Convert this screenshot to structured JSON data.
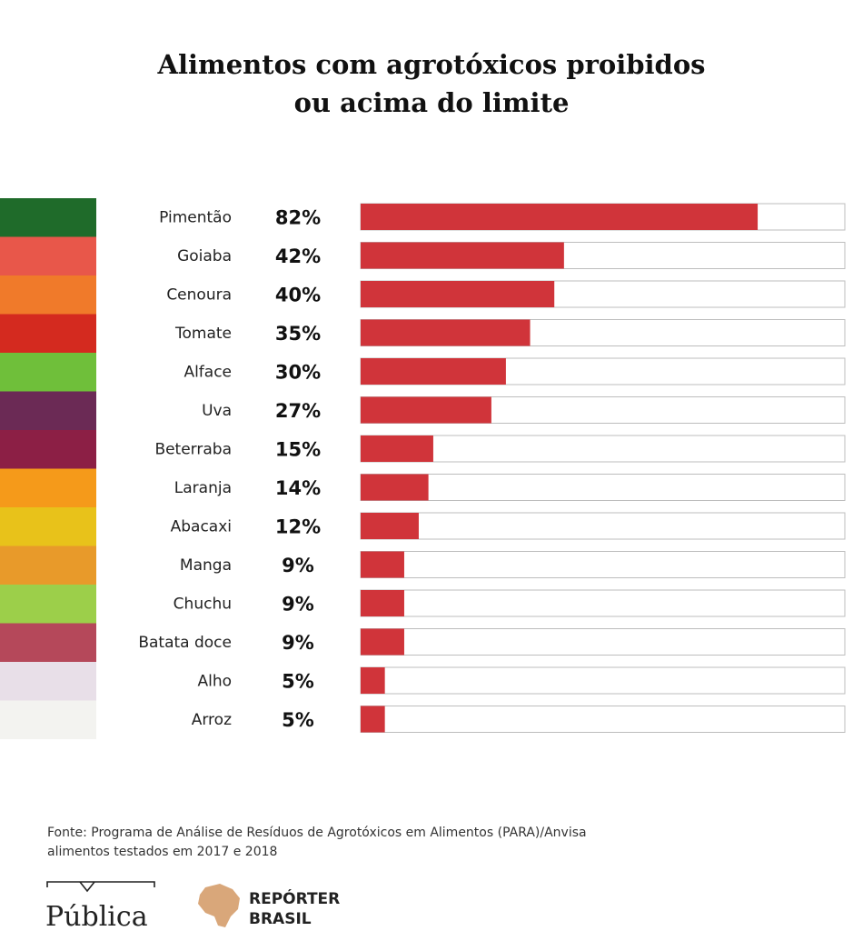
{
  "title_lines": [
    "Alimentos com agrotóxicos proibidos",
    "ou acima do limite"
  ],
  "chart_data": {
    "type": "bar",
    "orientation": "horizontal",
    "title": "Alimentos com agrotóxicos proibidos ou acima do limite",
    "categories": [
      "Pimentão",
      "Goiaba",
      "Cenoura",
      "Tomate",
      "Alface",
      "Uva",
      "Beterraba",
      "Laranja",
      "Abacaxi",
      "Manga",
      "Chuchu",
      "Batata doce",
      "Alho",
      "Arroz"
    ],
    "values": [
      82,
      42,
      40,
      35,
      30,
      27,
      15,
      14,
      12,
      9,
      9,
      9,
      5,
      5
    ],
    "value_labels": [
      "82%",
      "42%",
      "40%",
      "35%",
      "30%",
      "27%",
      "15%",
      "14%",
      "12%",
      "9%",
      "9%",
      "9%",
      "5%",
      "5%"
    ],
    "xlim": [
      0,
      100
    ],
    "unit": "%",
    "bar_color": "#d0343a",
    "track_color": "#ffffff",
    "grid": false,
    "legend": "none"
  },
  "food_image_colors": [
    "#1f6b2a",
    "#e8574a",
    "#f07a2a",
    "#d42a1f",
    "#6fbf3a",
    "#6b2a55",
    "#8c1f45",
    "#f59a1a",
    "#e8c21a",
    "#e89a2a",
    "#9ccf4a",
    "#b5485a",
    "#e8dfe8",
    "#f3f3f0"
  ],
  "source": {
    "line1": "Fonte: Programa de Análise de Resíduos de Agrotóxicos em Alimentos (PARA)/Anvisa",
    "line2": "alimentos testados em 2017 e 2018"
  },
  "logos": {
    "publica": "Pública",
    "reporter_line1": "REPÓRTER",
    "reporter_line2": "BRASIL"
  },
  "colors": {
    "bar": "#d0343a",
    "reporter_map": "#d9a77a",
    "text": "#222222"
  }
}
